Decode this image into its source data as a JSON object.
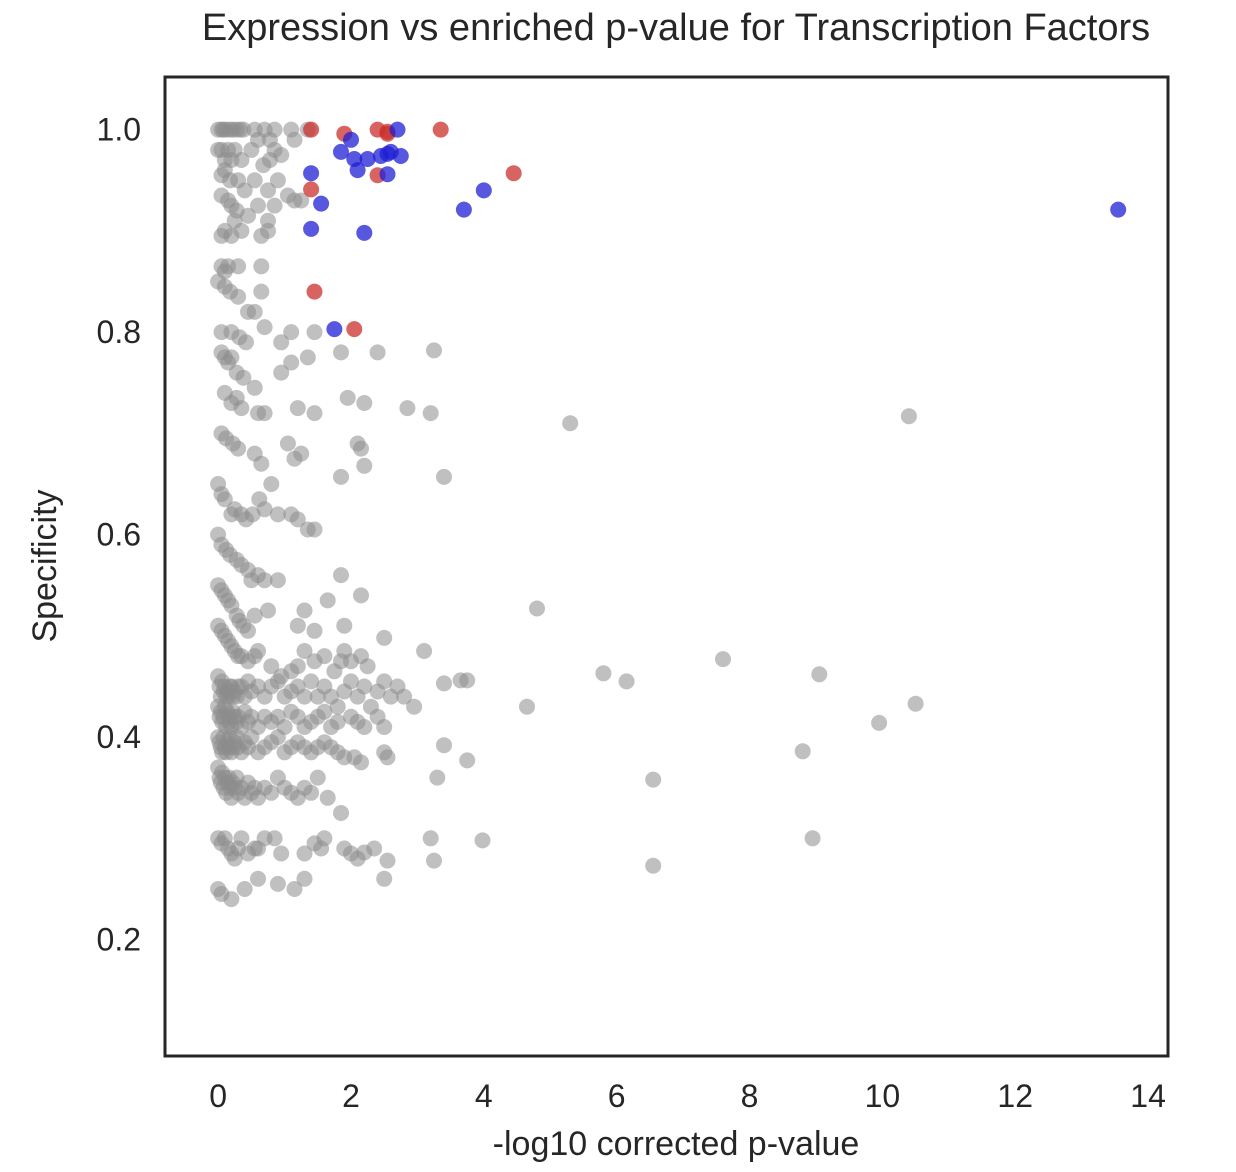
{
  "chart_data": {
    "type": "scatter",
    "title": "Expression vs enriched p-value for Transcription Factors",
    "xlabel": "-log10 corrected p-value",
    "ylabel": "Specificity",
    "xlim": [
      -0.8,
      14.3
    ],
    "ylim": [
      0.085,
      1.052
    ],
    "xticks": [
      0,
      2,
      4,
      6,
      8,
      10,
      12,
      14
    ],
    "yticks": [
      0.2,
      0.4,
      0.6,
      0.8,
      1.0
    ],
    "xtick_labels": [
      "0",
      "2",
      "4",
      "6",
      "8",
      "10",
      "12",
      "14"
    ],
    "ytick_labels": [
      "0.2",
      "0.4",
      "0.6",
      "0.8",
      "1.0"
    ],
    "grid": false,
    "colors": {
      "gray": "#8c8c8c",
      "red": "#c9302c",
      "blue": "#1f1fd4"
    },
    "series": [
      {
        "color": "gray",
        "x": [
          0.0,
          0.05,
          0.08,
          0.12,
          0.18,
          0.22,
          0.28,
          0.33,
          0.38,
          0.55,
          0.6,
          0.7,
          0.78,
          0.85,
          1.1,
          1.15,
          1.35,
          0.0,
          0.05,
          0.1,
          0.15,
          0.2,
          0.25,
          0.35,
          0.5,
          0.68,
          0.78,
          0.85,
          0.95,
          0.05,
          0.1,
          0.18,
          0.3,
          0.4,
          0.55,
          0.75,
          0.9,
          1.05,
          1.25,
          0.05,
          0.15,
          0.2,
          0.28,
          0.45,
          0.6,
          0.75,
          0.85,
          1.15,
          0.05,
          0.1,
          0.2,
          0.25,
          0.35,
          0.65,
          0.75,
          0.05,
          0.1,
          0.15,
          0.3,
          0.65,
          0.0,
          0.1,
          0.18,
          0.3,
          0.45,
          0.55,
          0.65,
          0.95,
          1.1,
          1.45,
          0.05,
          0.2,
          0.32,
          0.42,
          0.7,
          0.05,
          0.1,
          0.15,
          0.2,
          0.28,
          0.38,
          0.55,
          0.95,
          1.1,
          1.35,
          1.85,
          2.4,
          3.25,
          0.1,
          0.2,
          0.28,
          0.35,
          0.6,
          0.7,
          1.2,
          1.45,
          1.95,
          2.2,
          2.85,
          3.2,
          5.3,
          10.4,
          0.05,
          0.12,
          0.22,
          0.3,
          0.55,
          0.65,
          0.8,
          1.05,
          1.15,
          1.25,
          2.1,
          2.15,
          2.2,
          1.85,
          3.4,
          0.0,
          0.05,
          0.1,
          0.2,
          0.25,
          0.35,
          0.42,
          0.52,
          0.62,
          0.7,
          0.9,
          1.1,
          1.2,
          1.35,
          1.45,
          0.0,
          0.05,
          0.12,
          0.18,
          0.28,
          0.35,
          0.45,
          0.5,
          0.6,
          0.7,
          0.9,
          1.85,
          2.15,
          0.0,
          0.05,
          0.1,
          0.15,
          0.2,
          0.28,
          0.32,
          0.38,
          0.45,
          0.55,
          0.75,
          1.2,
          1.3,
          1.45,
          1.65,
          1.9,
          4.8,
          0.0,
          0.05,
          0.1,
          0.15,
          0.2,
          0.25,
          0.3,
          0.35,
          0.45,
          0.55,
          0.6,
          0.8,
          0.95,
          1.1,
          1.2,
          1.3,
          1.45,
          1.6,
          1.75,
          1.85,
          1.9,
          2.0,
          2.15,
          2.25,
          2.5,
          3.1,
          0.0,
          0.02,
          0.04,
          0.06,
          0.08,
          0.1,
          0.12,
          0.14,
          0.16,
          0.18,
          0.2,
          0.22,
          0.25,
          0.28,
          0.3,
          0.35,
          0.4,
          0.45,
          0.5,
          0.6,
          0.7,
          0.8,
          0.9,
          1.0,
          1.1,
          1.2,
          1.3,
          1.4,
          1.5,
          1.6,
          1.7,
          1.8,
          1.9,
          2.0,
          2.1,
          2.2,
          2.3,
          2.4,
          2.5,
          2.6,
          2.7,
          2.8,
          2.95,
          3.4,
          3.65,
          3.75,
          4.65,
          5.8,
          6.15,
          7.6,
          9.05,
          0.0,
          0.02,
          0.04,
          0.06,
          0.08,
          0.1,
          0.12,
          0.14,
          0.16,
          0.18,
          0.2,
          0.22,
          0.25,
          0.28,
          0.3,
          0.35,
          0.4,
          0.45,
          0.5,
          0.6,
          0.7,
          0.8,
          0.9,
          1.0,
          1.1,
          1.2,
          1.3,
          1.4,
          1.5,
          1.6,
          1.7,
          1.8,
          2.0,
          2.1,
          2.2,
          2.4,
          2.5,
          3.4,
          3.75,
          8.8,
          9.95,
          10.5,
          0.0,
          0.02,
          0.04,
          0.06,
          0.08,
          0.1,
          0.12,
          0.14,
          0.16,
          0.18,
          0.2,
          0.22,
          0.25,
          0.28,
          0.3,
          0.35,
          0.4,
          0.45,
          0.5,
          0.6,
          0.7,
          0.8,
          0.9,
          1.0,
          1.1,
          1.2,
          1.3,
          1.4,
          1.5,
          1.6,
          1.7,
          1.8,
          1.9,
          2.05,
          2.15,
          2.5,
          2.55,
          3.3,
          6.55,
          0.0,
          0.02,
          0.04,
          0.06,
          0.08,
          0.1,
          0.12,
          0.14,
          0.16,
          0.18,
          0.2,
          0.22,
          0.25,
          0.28,
          0.3,
          0.35,
          0.4,
          0.45,
          0.5,
          0.55,
          0.6,
          0.7,
          0.8,
          0.9,
          1.0,
          1.1,
          1.2,
          1.3,
          1.4,
          1.5,
          1.65,
          1.85,
          3.2,
          3.25,
          3.98,
          8.95,
          6.55,
          2.2,
          2.55,
          0.0,
          0.05,
          0.1,
          0.15,
          0.2,
          0.25,
          0.3,
          0.35,
          0.45,
          0.55,
          0.6,
          0.7,
          0.85,
          0.95,
          1.3,
          1.45,
          1.55,
          1.6,
          1.9,
          2.0,
          2.1,
          2.35,
          2.5,
          0.0,
          0.05,
          0.2,
          0.4,
          0.6,
          0.9,
          1.15,
          1.3
        ],
        "y": [
          1.0,
          1.0,
          1.0,
          1.0,
          1.0,
          1.0,
          1.0,
          1.0,
          1.0,
          1.0,
          0.99,
          1.0,
          0.99,
          1.0,
          1.0,
          0.99,
          1.0,
          0.98,
          0.98,
          0.97,
          0.98,
          0.97,
          0.98,
          0.97,
          0.98,
          0.965,
          0.97,
          0.98,
          0.975,
          0.955,
          0.96,
          0.95,
          0.95,
          0.94,
          0.95,
          0.94,
          0.95,
          0.935,
          0.93,
          0.935,
          0.93,
          0.925,
          0.92,
          0.915,
          0.925,
          0.91,
          0.925,
          0.93,
          0.895,
          0.9,
          0.895,
          0.91,
          0.9,
          0.895,
          0.9,
          0.865,
          0.86,
          0.865,
          0.865,
          0.865,
          0.85,
          0.845,
          0.84,
          0.835,
          0.82,
          0.82,
          0.84,
          0.79,
          0.8,
          0.8,
          0.8,
          0.8,
          0.795,
          0.79,
          0.805,
          0.78,
          0.775,
          0.77,
          0.775,
          0.76,
          0.755,
          0.745,
          0.76,
          0.77,
          0.775,
          0.78,
          0.78,
          0.782,
          0.74,
          0.73,
          0.735,
          0.725,
          0.72,
          0.72,
          0.725,
          0.72,
          0.735,
          0.73,
          0.725,
          0.72,
          0.71,
          0.717,
          0.7,
          0.695,
          0.69,
          0.685,
          0.68,
          0.67,
          0.65,
          0.69,
          0.675,
          0.68,
          0.69,
          0.685,
          0.668,
          0.657,
          0.657,
          0.65,
          0.64,
          0.635,
          0.62,
          0.625,
          0.62,
          0.615,
          0.62,
          0.635,
          0.625,
          0.62,
          0.62,
          0.615,
          0.605,
          0.605,
          0.6,
          0.59,
          0.585,
          0.58,
          0.575,
          0.57,
          0.565,
          0.555,
          0.56,
          0.555,
          0.555,
          0.56,
          0.54,
          0.55,
          0.545,
          0.54,
          0.535,
          0.53,
          0.52,
          0.515,
          0.51,
          0.505,
          0.52,
          0.525,
          0.51,
          0.525,
          0.505,
          0.535,
          0.51,
          0.527,
          0.51,
          0.505,
          0.5,
          0.495,
          0.49,
          0.485,
          0.48,
          0.48,
          0.475,
          0.48,
          0.485,
          0.47,
          0.46,
          0.465,
          0.47,
          0.485,
          0.475,
          0.48,
          0.465,
          0.475,
          0.485,
          0.475,
          0.48,
          0.47,
          0.498,
          0.485,
          0.46,
          0.45,
          0.44,
          0.455,
          0.445,
          0.45,
          0.44,
          0.445,
          0.44,
          0.45,
          0.45,
          0.44,
          0.445,
          0.44,
          0.45,
          0.45,
          0.44,
          0.455,
          0.445,
          0.45,
          0.44,
          0.45,
          0.455,
          0.44,
          0.445,
          0.45,
          0.44,
          0.455,
          0.44,
          0.45,
          0.44,
          0.43,
          0.445,
          0.455,
          0.44,
          0.45,
          0.43,
          0.445,
          0.455,
          0.44,
          0.45,
          0.44,
          0.43,
          0.453,
          0.456,
          0.456,
          0.43,
          0.463,
          0.455,
          0.477,
          0.462,
          0.43,
          0.42,
          0.425,
          0.415,
          0.42,
          0.43,
          0.41,
          0.425,
          0.415,
          0.42,
          0.41,
          0.425,
          0.42,
          0.415,
          0.42,
          0.41,
          0.425,
          0.415,
          0.42,
          0.41,
          0.42,
          0.415,
          0.42,
          0.41,
          0.425,
          0.42,
          0.41,
          0.415,
          0.42,
          0.425,
          0.41,
          0.415,
          0.42,
          0.415,
          0.41,
          0.42,
          0.41,
          0.392,
          0.377,
          0.386,
          0.414,
          0.433,
          0.4,
          0.395,
          0.39,
          0.385,
          0.4,
          0.39,
          0.385,
          0.395,
          0.39,
          0.4,
          0.385,
          0.39,
          0.395,
          0.4,
          0.39,
          0.385,
          0.395,
          0.39,
          0.4,
          0.385,
          0.39,
          0.395,
          0.4,
          0.385,
          0.39,
          0.395,
          0.39,
          0.385,
          0.39,
          0.395,
          0.39,
          0.385,
          0.38,
          0.38,
          0.375,
          0.385,
          0.38,
          0.36,
          0.358,
          0.37,
          0.36,
          0.355,
          0.365,
          0.35,
          0.36,
          0.345,
          0.355,
          0.36,
          0.35,
          0.34,
          0.355,
          0.35,
          0.36,
          0.345,
          0.35,
          0.34,
          0.355,
          0.345,
          0.35,
          0.34,
          0.35,
          0.345,
          0.36,
          0.35,
          0.345,
          0.34,
          0.35,
          0.345,
          0.36,
          0.34,
          0.325,
          0.3,
          0.278,
          0.298,
          0.3,
          0.273,
          0.286,
          0.278,
          0.3,
          0.295,
          0.3,
          0.29,
          0.285,
          0.28,
          0.29,
          0.3,
          0.285,
          0.29,
          0.29,
          0.3,
          0.3,
          0.285,
          0.285,
          0.295,
          0.29,
          0.3,
          0.29,
          0.285,
          0.28,
          0.29,
          0.26,
          0.25,
          0.245,
          0.24,
          0.25,
          0.26,
          0.255,
          0.25,
          0.26
        ]
      },
      {
        "color": "red",
        "x": [
          1.4,
          1.4,
          1.45,
          1.9,
          2.05,
          2.4,
          2.4,
          2.55,
          2.55,
          3.35,
          4.45
        ],
        "y": [
          1.0,
          0.941,
          0.84,
          0.996,
          0.803,
          1.0,
          0.955,
          0.996,
          0.998,
          1.0,
          0.957
        ]
      },
      {
        "color": "blue",
        "x": [
          1.4,
          1.4,
          1.55,
          1.75,
          1.85,
          2.0,
          2.05,
          2.1,
          2.2,
          2.25,
          2.45,
          2.55,
          2.6,
          2.55,
          2.7,
          2.75,
          3.7,
          4.0,
          13.55
        ],
        "y": [
          0.957,
          0.902,
          0.927,
          0.803,
          0.978,
          0.99,
          0.971,
          0.96,
          0.898,
          0.971,
          0.974,
          0.956,
          0.978,
          0.976,
          1.0,
          0.974,
          0.921,
          0.94,
          0.921
        ]
      }
    ]
  }
}
